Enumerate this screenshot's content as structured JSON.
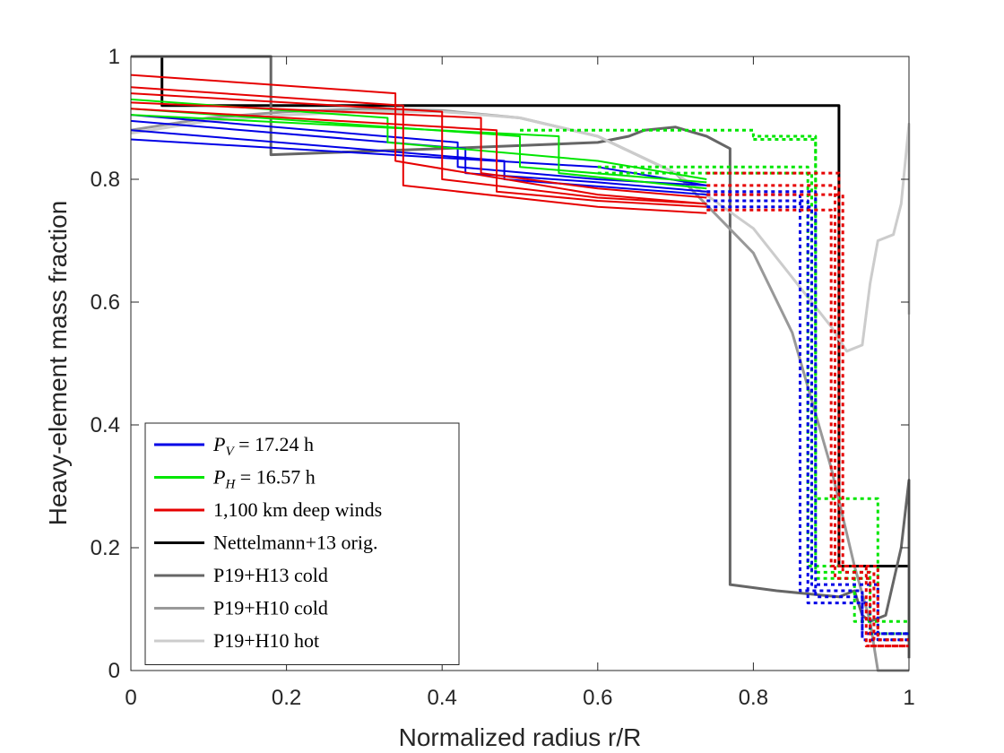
{
  "chart_data": {
    "type": "line",
    "title": "",
    "xlabel": "Normalized radius r/R",
    "ylabel": "Heavy-element mass fraction",
    "xlim": [
      0,
      1
    ],
    "ylim": [
      0,
      1
    ],
    "xticks": [
      "0",
      "0.2",
      "0.4",
      "0.6",
      "0.8",
      "1"
    ],
    "yticks": [
      "0",
      "0.2",
      "0.4",
      "0.6",
      "0.8",
      "1"
    ],
    "legend_position": "bottom-left",
    "legend": [
      {
        "label": "P_V = 17.24 h",
        "sym": "P",
        "sub": "V",
        "rest": " = 17.24 h",
        "color": "#0000e6"
      },
      {
        "label": "P_H = 16.57 h",
        "sym": "P",
        "sub": "H",
        "rest": " = 16.57 h",
        "color": "#00e600"
      },
      {
        "label": "1,100 km deep winds",
        "color": "#e60000"
      },
      {
        "label": "Nettelmann+13 orig.",
        "color": "#000000"
      },
      {
        "label": "P19+H13 cold",
        "color": "#666666"
      },
      {
        "label": "P19+H10 cold",
        "color": "#999999"
      },
      {
        "label": "P19+H10 hot",
        "color": "#cccccc"
      }
    ],
    "series": [
      {
        "name": "Nettelmann+13 orig.",
        "color": "#000000",
        "width": 3,
        "dash": "",
        "points": [
          [
            0.04,
            1.0
          ],
          [
            0.04,
            0.92
          ],
          [
            0.91,
            0.92
          ],
          [
            0.91,
            0.17
          ],
          [
            1.0,
            0.17
          ]
        ]
      },
      {
        "name": "P19+H13 cold",
        "color": "#666666",
        "width": 3,
        "dash": "",
        "points": [
          [
            0.0,
            1.0
          ],
          [
            0.18,
            1.0
          ],
          [
            0.18,
            0.84
          ],
          [
            0.4,
            0.85
          ],
          [
            0.6,
            0.86
          ],
          [
            0.64,
            0.87
          ],
          [
            0.66,
            0.88
          ],
          [
            0.7,
            0.885
          ],
          [
            0.74,
            0.87
          ],
          [
            0.77,
            0.85
          ],
          [
            0.77,
            0.14
          ],
          [
            0.83,
            0.13
          ],
          [
            0.91,
            0.12
          ],
          [
            0.93,
            0.13
          ],
          [
            0.94,
            0.09
          ],
          [
            0.95,
            0.08
          ],
          [
            0.97,
            0.09
          ],
          [
            0.99,
            0.2
          ],
          [
            1.0,
            0.31
          ],
          [
            1.0,
            0.02
          ]
        ]
      },
      {
        "name": "P19+H10 cold",
        "color": "#999999",
        "width": 3,
        "dash": "",
        "points": [
          [
            0.0,
            0.88
          ],
          [
            0.1,
            0.9
          ],
          [
            0.2,
            0.91
          ],
          [
            0.3,
            0.915
          ],
          [
            0.4,
            0.912
          ],
          [
            0.5,
            0.9
          ],
          [
            0.6,
            0.87
          ],
          [
            0.7,
            0.81
          ],
          [
            0.8,
            0.68
          ],
          [
            0.85,
            0.55
          ],
          [
            0.9,
            0.33
          ],
          [
            0.93,
            0.17
          ],
          [
            0.95,
            0.08
          ],
          [
            0.96,
            0.0
          ],
          [
            1.0,
            0.0
          ]
        ]
      },
      {
        "name": "P19+H10 hot",
        "color": "#cccccc",
        "width": 3,
        "dash": "",
        "points": [
          [
            0.0,
            0.875
          ],
          [
            0.1,
            0.895
          ],
          [
            0.2,
            0.905
          ],
          [
            0.3,
            0.91
          ],
          [
            0.4,
            0.91
          ],
          [
            0.5,
            0.9
          ],
          [
            0.6,
            0.87
          ],
          [
            0.7,
            0.81
          ],
          [
            0.8,
            0.72
          ],
          [
            0.85,
            0.64
          ],
          [
            0.9,
            0.56
          ],
          [
            0.92,
            0.52
          ],
          [
            0.94,
            0.53
          ],
          [
            0.95,
            0.63
          ],
          [
            0.96,
            0.7
          ],
          [
            0.98,
            0.71
          ],
          [
            0.99,
            0.76
          ],
          [
            1.0,
            0.89
          ],
          [
            1.0,
            0.58
          ]
        ]
      },
      {
        "name": "P_V = 17.24 h (a)",
        "color": "#0000e6",
        "width": 2,
        "dash": "",
        "points": [
          [
            0.0,
            0.905
          ],
          [
            0.42,
            0.86
          ],
          [
            0.42,
            0.82
          ],
          [
            0.6,
            0.8
          ],
          [
            0.74,
            0.79
          ]
        ]
      },
      {
        "name": "P_V = 17.24 h (b)",
        "color": "#0000e6",
        "width": 2,
        "dash": "",
        "points": [
          [
            0.0,
            0.895
          ],
          [
            0.43,
            0.85
          ],
          [
            0.43,
            0.81
          ],
          [
            0.6,
            0.795
          ],
          [
            0.74,
            0.78
          ]
        ]
      },
      {
        "name": "P_V = 17.24 h (c)",
        "color": "#0000e6",
        "width": 2,
        "dash": "",
        "points": [
          [
            0.0,
            0.88
          ],
          [
            0.48,
            0.83
          ],
          [
            0.48,
            0.8
          ],
          [
            0.74,
            0.775
          ]
        ]
      },
      {
        "name": "P_V = 17.24 h (d)",
        "color": "#0000e6",
        "width": 2,
        "dash": "",
        "points": [
          [
            0.0,
            0.865
          ],
          [
            0.6,
            0.82
          ],
          [
            0.74,
            0.79
          ]
        ]
      },
      {
        "name": "P_H = 16.57 h (a)",
        "color": "#00e600",
        "width": 2,
        "dash": "",
        "points": [
          [
            0.0,
            0.93
          ],
          [
            0.33,
            0.9
          ],
          [
            0.33,
            0.86
          ],
          [
            0.6,
            0.83
          ],
          [
            0.74,
            0.8
          ]
        ]
      },
      {
        "name": "P_H = 16.57 h (b)",
        "color": "#00e600",
        "width": 2,
        "dash": "",
        "points": [
          [
            0.0,
            0.915
          ],
          [
            0.5,
            0.87
          ],
          [
            0.5,
            0.82
          ],
          [
            0.74,
            0.795
          ]
        ]
      },
      {
        "name": "P_H = 16.57 h (c)",
        "color": "#00e600",
        "width": 2,
        "dash": "",
        "points": [
          [
            0.0,
            0.905
          ],
          [
            0.55,
            0.87
          ],
          [
            0.55,
            0.81
          ],
          [
            0.74,
            0.785
          ]
        ]
      },
      {
        "name": "1,100 km deep winds (a)",
        "color": "#e60000",
        "width": 2,
        "dash": "",
        "points": [
          [
            0.0,
            0.97
          ],
          [
            0.34,
            0.94
          ],
          [
            0.34,
            0.83
          ],
          [
            0.6,
            0.775
          ],
          [
            0.74,
            0.76
          ]
        ]
      },
      {
        "name": "1,100 km deep winds (b)",
        "color": "#e60000",
        "width": 2,
        "dash": "",
        "points": [
          [
            0.0,
            0.95
          ],
          [
            0.35,
            0.92
          ],
          [
            0.35,
            0.79
          ],
          [
            0.6,
            0.755
          ],
          [
            0.74,
            0.745
          ]
        ]
      },
      {
        "name": "1,100 km deep winds (c)",
        "color": "#e60000",
        "width": 2,
        "dash": "",
        "points": [
          [
            0.0,
            0.94
          ],
          [
            0.4,
            0.91
          ],
          [
            0.4,
            0.8
          ],
          [
            0.6,
            0.77
          ],
          [
            0.74,
            0.76
          ]
        ]
      },
      {
        "name": "1,100 km deep winds (d)",
        "color": "#e60000",
        "width": 2,
        "dash": "",
        "points": [
          [
            0.0,
            0.925
          ],
          [
            0.45,
            0.9
          ],
          [
            0.45,
            0.81
          ],
          [
            0.6,
            0.785
          ],
          [
            0.74,
            0.77
          ]
        ]
      },
      {
        "name": "1,100 km deep winds (e)",
        "color": "#e60000",
        "width": 2,
        "dash": "",
        "points": [
          [
            0.0,
            0.915
          ],
          [
            0.47,
            0.88
          ],
          [
            0.47,
            0.78
          ],
          [
            0.6,
            0.765
          ],
          [
            0.74,
            0.755
          ]
        ]
      },
      {
        "name": "P_H outer (a)",
        "color": "#00e600",
        "width": 3,
        "dash": "4,4",
        "points": [
          [
            0.5,
            0.88
          ],
          [
            0.8,
            0.88
          ],
          [
            0.8,
            0.87
          ],
          [
            0.88,
            0.87
          ],
          [
            0.88,
            0.16
          ],
          [
            0.95,
            0.16
          ],
          [
            0.95,
            0.06
          ],
          [
            1.0,
            0.06
          ]
        ]
      },
      {
        "name": "P_H outer (b)",
        "color": "#00e600",
        "width": 3,
        "dash": "4,4",
        "points": [
          [
            0.6,
            0.82
          ],
          [
            0.87,
            0.82
          ],
          [
            0.87,
            0.17
          ],
          [
            0.93,
            0.17
          ],
          [
            0.93,
            0.08
          ],
          [
            1.0,
            0.08
          ]
        ]
      },
      {
        "name": "P_H outer (c)",
        "color": "#00e600",
        "width": 3,
        "dash": "4,4",
        "points": [
          [
            0.6,
            0.81
          ],
          [
            0.875,
            0.81
          ],
          [
            0.875,
            0.15
          ],
          [
            0.95,
            0.15
          ],
          [
            0.95,
            0.06
          ],
          [
            1.0,
            0.06
          ]
        ]
      },
      {
        "name": "P_H outer (d)",
        "color": "#00e600",
        "width": 3,
        "dash": "4,4",
        "points": [
          [
            0.8,
            0.865
          ],
          [
            0.88,
            0.865
          ],
          [
            0.88,
            0.28
          ],
          [
            0.96,
            0.28
          ],
          [
            0.96,
            0.05
          ],
          [
            1.0,
            0.05
          ]
        ]
      },
      {
        "name": "P_V outer (a)",
        "color": "#0000e6",
        "width": 3,
        "dash": "4,4",
        "points": [
          [
            0.74,
            0.78
          ],
          [
            0.88,
            0.78
          ],
          [
            0.88,
            0.12
          ],
          [
            0.94,
            0.12
          ],
          [
            0.94,
            0.06
          ],
          [
            1.0,
            0.06
          ]
        ]
      },
      {
        "name": "P_V outer (b)",
        "color": "#0000e6",
        "width": 3,
        "dash": "4,4",
        "points": [
          [
            0.74,
            0.775
          ],
          [
            0.86,
            0.775
          ],
          [
            0.86,
            0.13
          ],
          [
            0.94,
            0.13
          ],
          [
            0.94,
            0.05
          ],
          [
            1.0,
            0.05
          ]
        ]
      },
      {
        "name": "P_V outer (c)",
        "color": "#0000e6",
        "width": 3,
        "dash": "4,4",
        "points": [
          [
            0.74,
            0.765
          ],
          [
            0.87,
            0.765
          ],
          [
            0.87,
            0.11
          ],
          [
            0.95,
            0.11
          ],
          [
            0.95,
            0.06
          ],
          [
            1.0,
            0.06
          ]
        ]
      },
      {
        "name": "P_V outer (d)",
        "color": "#0000e6",
        "width": 3,
        "dash": "4,4",
        "points": [
          [
            0.74,
            0.755
          ],
          [
            0.875,
            0.755
          ],
          [
            0.875,
            0.14
          ],
          [
            0.96,
            0.14
          ],
          [
            0.96,
            0.05
          ],
          [
            1.0,
            0.05
          ]
        ]
      },
      {
        "name": "1,100 km outer (a)",
        "color": "#e60000",
        "width": 3,
        "dash": "4,4",
        "points": [
          [
            0.74,
            0.81
          ],
          [
            0.91,
            0.81
          ],
          [
            0.91,
            0.17
          ],
          [
            0.96,
            0.17
          ],
          [
            0.96,
            0.05
          ],
          [
            1.0,
            0.05
          ]
        ]
      },
      {
        "name": "1,100 km outer (b)",
        "color": "#e60000",
        "width": 3,
        "dash": "4,4",
        "points": [
          [
            0.74,
            0.79
          ],
          [
            0.905,
            0.79
          ],
          [
            0.905,
            0.15
          ],
          [
            0.95,
            0.15
          ],
          [
            0.95,
            0.04
          ],
          [
            1.0,
            0.04
          ]
        ]
      },
      {
        "name": "1,100 km outer (c)",
        "color": "#e60000",
        "width": 3,
        "dash": "4,4",
        "points": [
          [
            0.74,
            0.775
          ],
          [
            0.915,
            0.775
          ],
          [
            0.915,
            0.16
          ],
          [
            0.955,
            0.16
          ],
          [
            0.955,
            0.05
          ],
          [
            1.0,
            0.05
          ]
        ]
      },
      {
        "name": "1,100 km outer (d)",
        "color": "#e60000",
        "width": 3,
        "dash": "4,4",
        "points": [
          [
            0.74,
            0.75
          ],
          [
            0.9,
            0.75
          ],
          [
            0.9,
            0.17
          ],
          [
            0.945,
            0.17
          ],
          [
            0.945,
            0.04
          ],
          [
            1.0,
            0.04
          ]
        ]
      }
    ]
  }
}
